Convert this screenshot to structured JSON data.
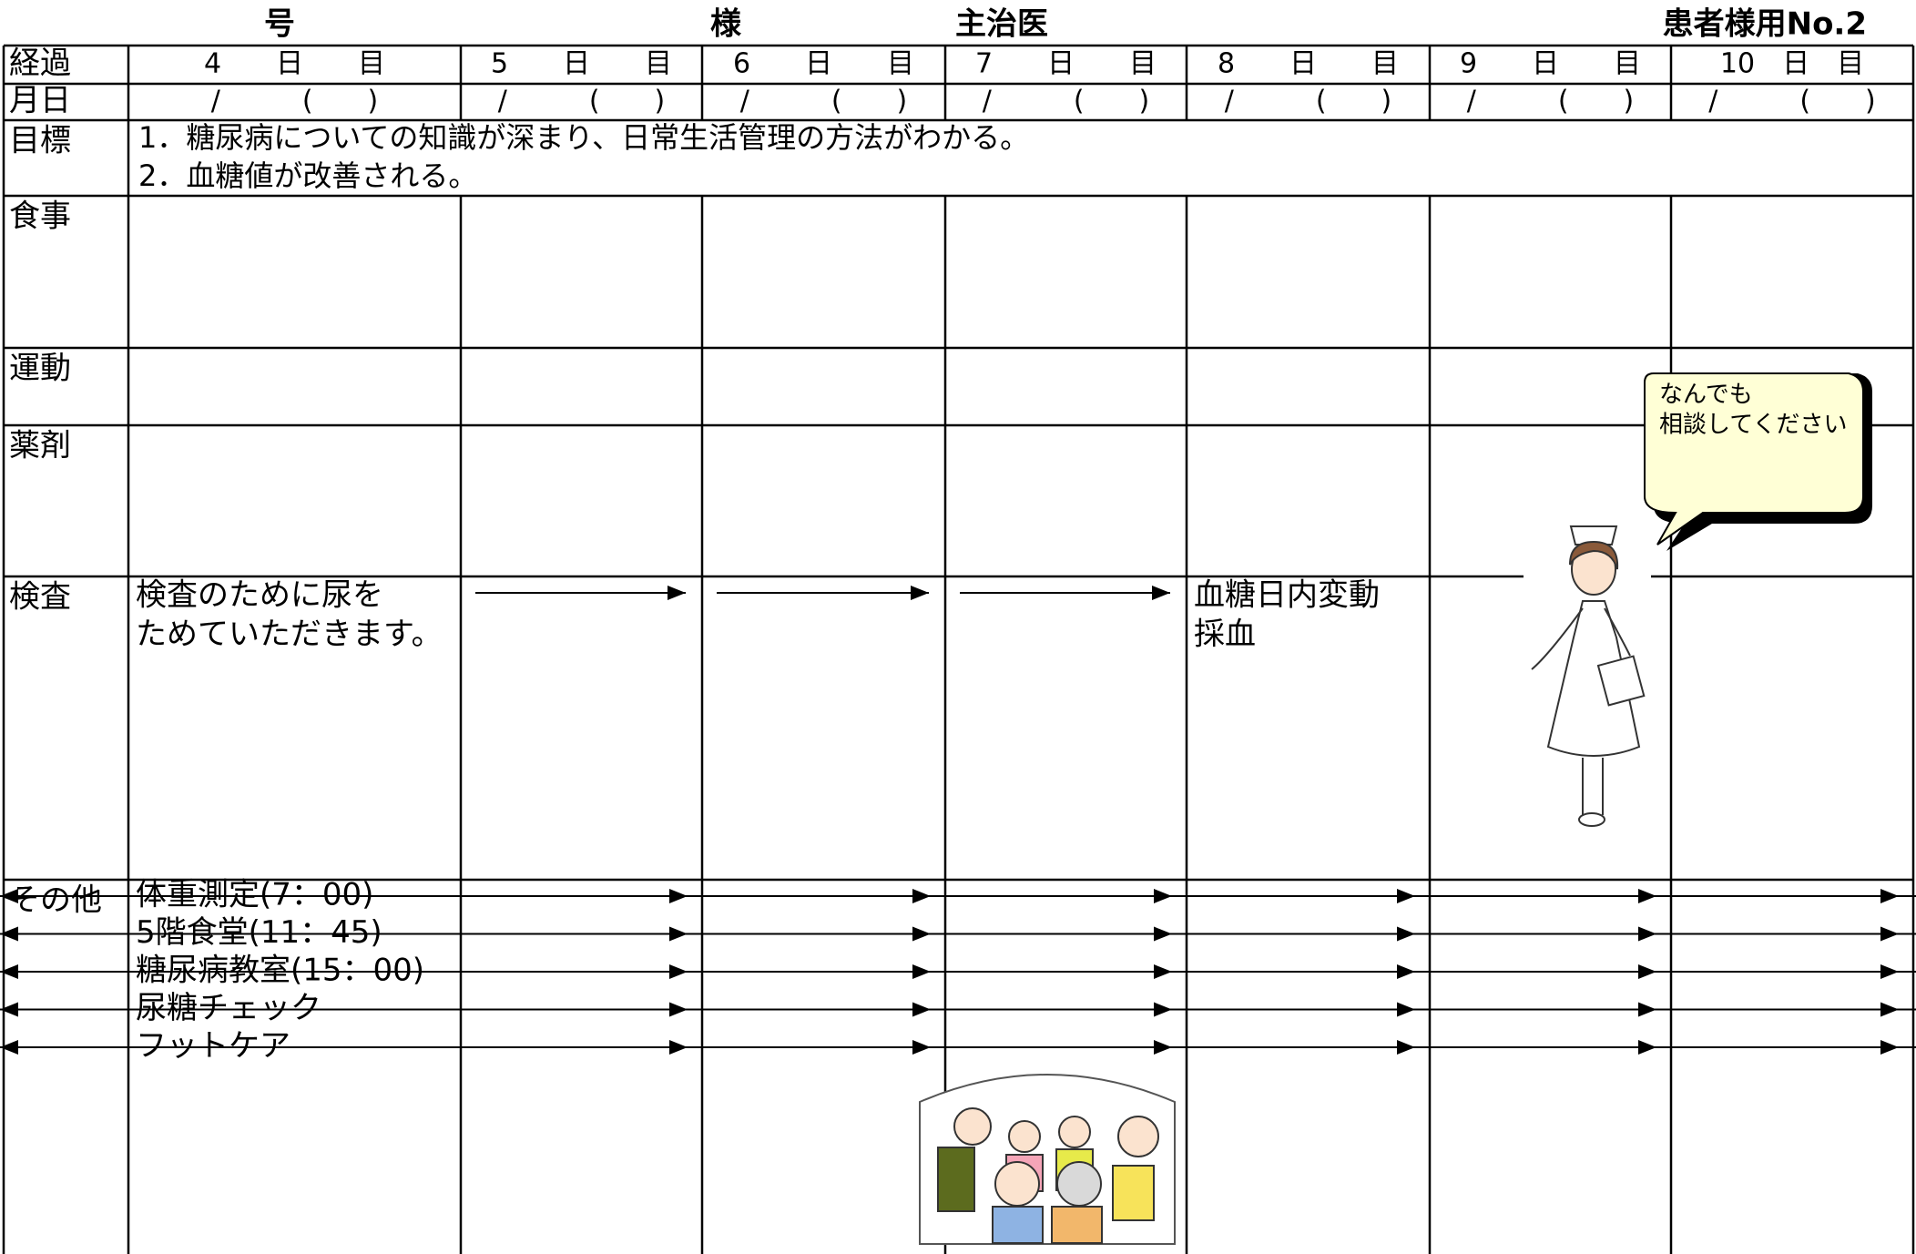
{
  "header": {
    "number_label": "号",
    "patient_label": "様",
    "doctor_label": "主治医",
    "form_no": "患者様用No.2"
  },
  "table": {
    "progress_label": "経過",
    "days": [
      "4　　日　　目",
      "5　　日　　目",
      "6　　日　　目",
      "7　　日　　目",
      "8　　日　　目",
      "9　　日　　目",
      "10　日　目"
    ],
    "date_label": "月日",
    "dates": [
      "/　　　(　　)",
      "/　　　(　　)",
      "/　　　(　　)",
      "/　　　(　　)",
      "/　　　(　　)",
      "/　　　(　　)",
      "/　　　(　　)"
    ],
    "goal_label": "目標",
    "goals": [
      "1．糖尿病についての知識が深まり、日常生活管理の方法がわかる。",
      "2．血糖値が改善される。"
    ],
    "meal_label": "食事",
    "exercise_label": "運動",
    "medicine_label": "薬剤",
    "exam_label": "検査",
    "exam_day4": [
      "検査のために尿を",
      "ためていただきます。"
    ],
    "exam_day8": [
      "血糖日内変動",
      "採血"
    ],
    "other_label": "その他",
    "other_items": [
      "体重測定(7：00)",
      "5階食堂(11：45)",
      "糖尿病教室(15：00)",
      "尿糖チェック",
      "フットケア"
    ]
  },
  "bubble": [
    "なんでも",
    "相談してください"
  ]
}
